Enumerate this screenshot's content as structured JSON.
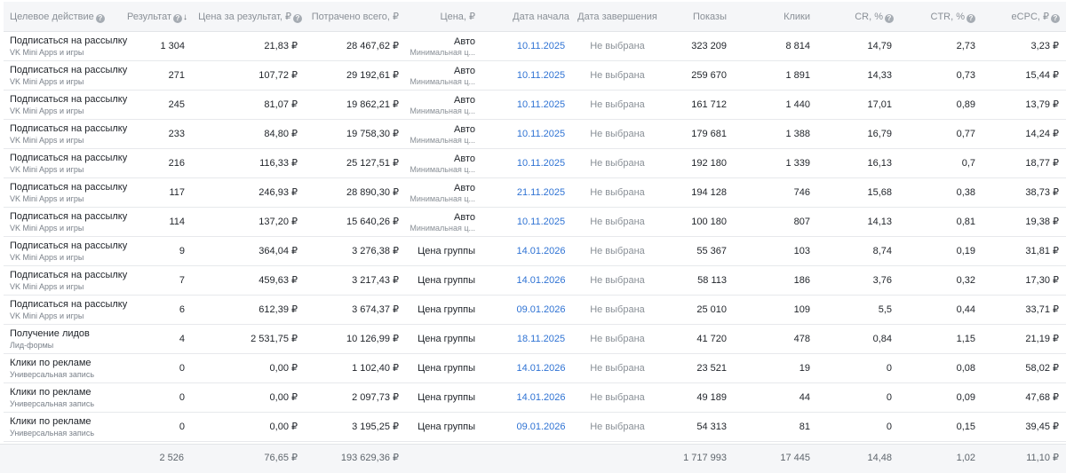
{
  "header": {
    "action": "Целевое действие",
    "result": "Результат",
    "result_sort_icon": "↓",
    "cost_per_result": "Цена за результат, ₽",
    "spent_total": "Потрачено всего, ₽",
    "price": "Цена, ₽",
    "start_date": "Дата начала",
    "end_date": "Дата завершения",
    "impressions": "Показы",
    "clicks": "Клики",
    "cr": "CR, %",
    "ctr": "CTR, %",
    "ecpc": "eCPC, ₽",
    "help_icon": "?"
  },
  "rows": [
    {
      "action": "Подписаться на рассылку",
      "type": "VK Mini Apps и игры",
      "result": "1 304",
      "cost_per_result": "21,83 ₽",
      "spent": "28 467,62 ₽",
      "price": "Авто",
      "price_sub": "Минимальная ц...",
      "start": "10.11.2025",
      "end": "Не выбрана",
      "impressions": "323 209",
      "clicks": "8 814",
      "cr": "14,79",
      "ctr": "2,73",
      "ecpc": "3,23 ₽"
    },
    {
      "action": "Подписаться на рассылку",
      "type": "VK Mini Apps и игры",
      "result": "271",
      "cost_per_result": "107,72 ₽",
      "spent": "29 192,61 ₽",
      "price": "Авто",
      "price_sub": "Минимальная ц...",
      "start": "10.11.2025",
      "end": "Не выбрана",
      "impressions": "259 670",
      "clicks": "1 891",
      "cr": "14,33",
      "ctr": "0,73",
      "ecpc": "15,44 ₽"
    },
    {
      "action": "Подписаться на рассылку",
      "type": "VK Mini Apps и игры",
      "result": "245",
      "cost_per_result": "81,07 ₽",
      "spent": "19 862,21 ₽",
      "price": "Авто",
      "price_sub": "Минимальная ц...",
      "start": "10.11.2025",
      "end": "Не выбрана",
      "impressions": "161 712",
      "clicks": "1 440",
      "cr": "17,01",
      "ctr": "0,89",
      "ecpc": "13,79 ₽"
    },
    {
      "action": "Подписаться на рассылку",
      "type": "VK Mini Apps и игры",
      "result": "233",
      "cost_per_result": "84,80 ₽",
      "spent": "19 758,30 ₽",
      "price": "Авто",
      "price_sub": "Минимальная ц...",
      "start": "10.11.2025",
      "end": "Не выбрана",
      "impressions": "179 681",
      "clicks": "1 388",
      "cr": "16,79",
      "ctr": "0,77",
      "ecpc": "14,24 ₽"
    },
    {
      "action": "Подписаться на рассылку",
      "type": "VK Mini Apps и игры",
      "result": "216",
      "cost_per_result": "116,33 ₽",
      "spent": "25 127,51 ₽",
      "price": "Авто",
      "price_sub": "Минимальная ц...",
      "start": "10.11.2025",
      "end": "Не выбрана",
      "impressions": "192 180",
      "clicks": "1 339",
      "cr": "16,13",
      "ctr": "0,7",
      "ecpc": "18,77 ₽"
    },
    {
      "action": "Подписаться на рассылку",
      "type": "VK Mini Apps и игры",
      "result": "117",
      "cost_per_result": "246,93 ₽",
      "spent": "28 890,30 ₽",
      "price": "Авто",
      "price_sub": "Минимальная ц...",
      "start": "21.11.2025",
      "end": "Не выбрана",
      "impressions": "194 128",
      "clicks": "746",
      "cr": "15,68",
      "ctr": "0,38",
      "ecpc": "38,73 ₽"
    },
    {
      "action": "Подписаться на рассылку",
      "type": "VK Mini Apps и игры",
      "result": "114",
      "cost_per_result": "137,20 ₽",
      "spent": "15 640,26 ₽",
      "price": "Авто",
      "price_sub": "Минимальная ц...",
      "start": "10.11.2025",
      "end": "Не выбрана",
      "impressions": "100 180",
      "clicks": "807",
      "cr": "14,13",
      "ctr": "0,81",
      "ecpc": "19,38 ₽"
    },
    {
      "action": "Подписаться на рассылку",
      "type": "VK Mini Apps и игры",
      "result": "9",
      "cost_per_result": "364,04 ₽",
      "spent": "3 276,38 ₽",
      "price": "Цена группы",
      "price_sub": "",
      "start": "14.01.2026",
      "end": "Не выбрана",
      "impressions": "55 367",
      "clicks": "103",
      "cr": "8,74",
      "ctr": "0,19",
      "ecpc": "31,81 ₽"
    },
    {
      "action": "Подписаться на рассылку",
      "type": "VK Mini Apps и игры",
      "result": "7",
      "cost_per_result": "459,63 ₽",
      "spent": "3 217,43 ₽",
      "price": "Цена группы",
      "price_sub": "",
      "start": "14.01.2026",
      "end": "Не выбрана",
      "impressions": "58 113",
      "clicks": "186",
      "cr": "3,76",
      "ctr": "0,32",
      "ecpc": "17,30 ₽"
    },
    {
      "action": "Подписаться на рассылку",
      "type": "VK Mini Apps и игры",
      "result": "6",
      "cost_per_result": "612,39 ₽",
      "spent": "3 674,37 ₽",
      "price": "Цена группы",
      "price_sub": "",
      "start": "09.01.2026",
      "end": "Не выбрана",
      "impressions": "25 010",
      "clicks": "109",
      "cr": "5,5",
      "ctr": "0,44",
      "ecpc": "33,71 ₽"
    },
    {
      "action": "Получение лидов",
      "type": "Лид-формы",
      "result": "4",
      "cost_per_result": "2 531,75 ₽",
      "spent": "10 126,99 ₽",
      "price": "Цена группы",
      "price_sub": "",
      "start": "18.11.2025",
      "end": "Не выбрана",
      "impressions": "41 720",
      "clicks": "478",
      "cr": "0,84",
      "ctr": "1,15",
      "ecpc": "21,19 ₽"
    },
    {
      "action": "Клики по рекламе",
      "type": "Универсальная запись",
      "result": "0",
      "cost_per_result": "0,00 ₽",
      "spent": "1 102,40 ₽",
      "price": "Цена группы",
      "price_sub": "",
      "start": "14.01.2026",
      "end": "Не выбрана",
      "impressions": "23 521",
      "clicks": "19",
      "cr": "0",
      "ctr": "0,08",
      "ecpc": "58,02 ₽"
    },
    {
      "action": "Клики по рекламе",
      "type": "Универсальная запись",
      "result": "0",
      "cost_per_result": "0,00 ₽",
      "spent": "2 097,73 ₽",
      "price": "Цена группы",
      "price_sub": "",
      "start": "14.01.2026",
      "end": "Не выбрана",
      "impressions": "49 189",
      "clicks": "44",
      "cr": "0",
      "ctr": "0,09",
      "ecpc": "47,68 ₽"
    },
    {
      "action": "Клики по рекламе",
      "type": "Универсальная запись",
      "result": "0",
      "cost_per_result": "0,00 ₽",
      "spent": "3 195,25 ₽",
      "price": "Цена группы",
      "price_sub": "",
      "start": "09.01.2026",
      "end": "Не выбрана",
      "impressions": "54 313",
      "clicks": "81",
      "cr": "0",
      "ctr": "0,15",
      "ecpc": "39,45 ₽"
    }
  ],
  "totals": {
    "result": "2 526",
    "cost_per_result": "76,65 ₽",
    "spent": "193 629,36 ₽",
    "impressions": "1 717 993",
    "clicks": "17 445",
    "cr": "14,48",
    "ctr": "1,02",
    "ecpc": "11,10 ₽"
  }
}
